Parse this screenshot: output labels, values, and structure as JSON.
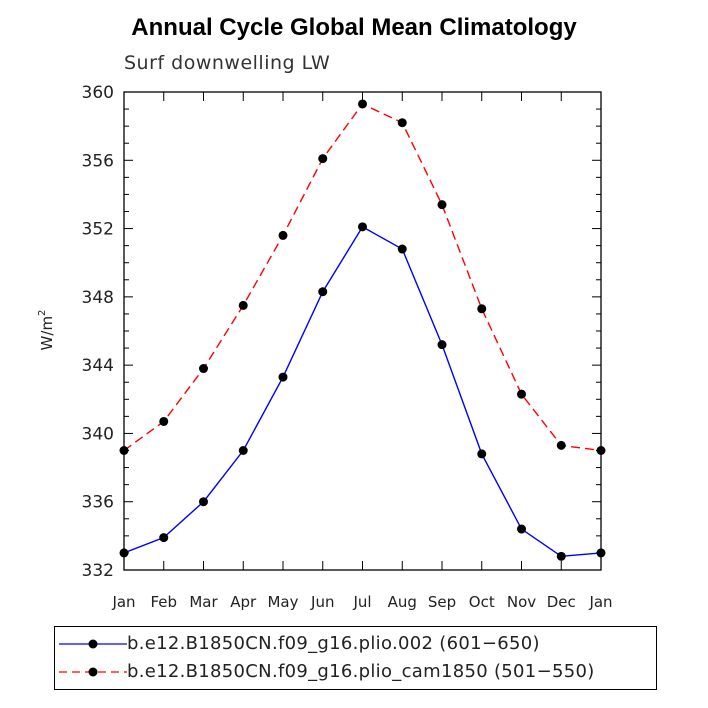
{
  "chart_data": {
    "type": "line",
    "title": "Annual Cycle Global Mean Climatology",
    "subtitle": "Surf downwelling LW",
    "ylabel": "W/m",
    "ylabel_sup": "2",
    "xlabel": "",
    "ylim": [
      332,
      360
    ],
    "yticks": [
      332,
      336,
      340,
      344,
      348,
      352,
      356,
      360
    ],
    "categories": [
      "Jan",
      "Feb",
      "Mar",
      "Apr",
      "May",
      "Jun",
      "Jul",
      "Aug",
      "Sep",
      "Oct",
      "Nov",
      "Dec",
      "Jan"
    ],
    "series": [
      {
        "name": "b.e12.B1850CN.f09_g16.plio.002 (601-650)",
        "color": "#0000ff",
        "dash": "solid",
        "values": [
          333.0,
          333.9,
          336.0,
          339.0,
          343.3,
          348.3,
          352.1,
          350.8,
          345.2,
          338.8,
          334.4,
          332.8,
          333.0
        ]
      },
      {
        "name": "b.e12.B1850CN.f09_g16.plio_cam1850 (501-550)",
        "color": "#ff0000",
        "dash": "dashed",
        "values": [
          339.0,
          340.7,
          343.8,
          347.5,
          351.6,
          356.1,
          359.3,
          358.2,
          353.4,
          347.3,
          342.3,
          339.3,
          339.0
        ]
      }
    ]
  },
  "legend": {
    "entries": [
      "b.e12.B1850CN.f09_g16.plio.002 (601−650)",
      "b.e12.B1850CN.f09_g16.plio_cam1850 (501−550)"
    ]
  }
}
